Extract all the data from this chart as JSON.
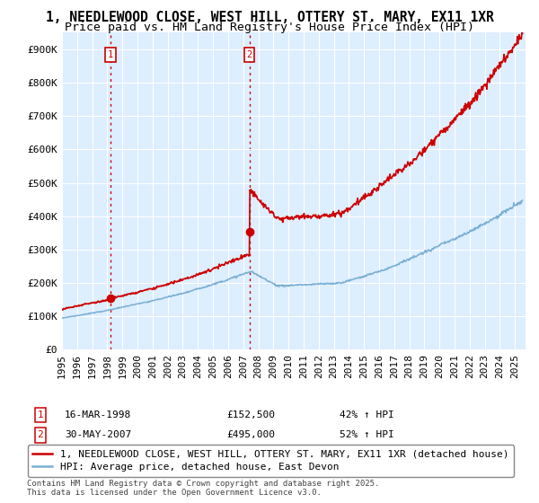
{
  "title": "1, NEEDLEWOOD CLOSE, WEST HILL, OTTERY ST. MARY, EX11 1XR",
  "subtitle": "Price paid vs. HM Land Registry's House Price Index (HPI)",
  "ylim": [
    0,
    950000
  ],
  "yticks": [
    0,
    100000,
    200000,
    300000,
    400000,
    500000,
    600000,
    700000,
    800000,
    900000
  ],
  "ytick_labels": [
    "£0",
    "£100K",
    "£200K",
    "£300K",
    "£400K",
    "£500K",
    "£600K",
    "£700K",
    "£800K",
    "£900K"
  ],
  "xlim_start": 1995.0,
  "xlim_end": 2025.7,
  "background_color": "#ffffff",
  "plot_bg_color": "#ddeeff",
  "grid_color": "#ffffff",
  "red_line_color": "#cc0000",
  "blue_line_color": "#7bafd4",
  "sale1_x": 1998.21,
  "sale1_price": 152500,
  "sale1_label": "1",
  "sale1_date": "16-MAR-1998",
  "sale1_hpi": "42%",
  "sale2_x": 2007.42,
  "sale2_price": 495000,
  "sale2_label": "2",
  "sale2_date": "30-MAY-2007",
  "sale2_hpi": "52%",
  "legend_red_label": "1, NEEDLEWOOD CLOSE, WEST HILL, OTTERY ST. MARY, EX11 1XR (detached house)",
  "legend_blue_label": "HPI: Average price, detached house, East Devon",
  "footnote": "Contains HM Land Registry data © Crown copyright and database right 2025.\nThis data is licensed under the Open Government Licence v3.0.",
  "title_fontsize": 10.5,
  "subtitle_fontsize": 9.5,
  "tick_fontsize": 8,
  "legend_fontsize": 8,
  "footnote_fontsize": 6.5
}
